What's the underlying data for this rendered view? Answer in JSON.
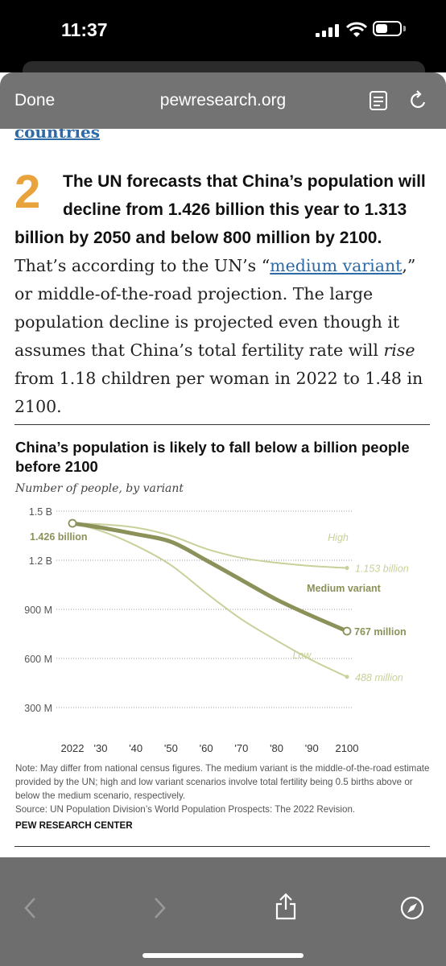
{
  "status_bar": {
    "time": "11:37"
  },
  "browser": {
    "done_label": "Done",
    "url": "pewresearch.org"
  },
  "article": {
    "cut_link": "countries",
    "number": "2",
    "bold_lead": "The UN forecasts that China’s population will decline from 1.426 billion this year to 1.313 billion by 2050 and below 800 million by 2100.",
    "text1": " That’s according to the UN’s “",
    "link": "medium variant",
    "text2": ",” or middle-of-the-road projection. The large population decline is projected even though it assumes that China’s total fertility rate will ",
    "italic": "rise",
    "text3": " from 1.18 children per woman in 2022 to 1.48 in 2100."
  },
  "chart_data": {
    "type": "line",
    "title": "China’s population is likely to fall below a billion people before 2100",
    "subtitle": "Number of people, by variant",
    "ylim": [
      0,
      1500
    ],
    "xlim": [
      2022,
      2100
    ],
    "y_ticks": [
      300,
      600,
      900,
      1200,
      1500
    ],
    "y_tick_labels": [
      "300 M",
      "600 M",
      "900 M",
      "1.2 B",
      "1.5 B"
    ],
    "x_ticks": [
      2022,
      2030,
      2040,
      2050,
      2060,
      2070,
      2080,
      2090,
      2100
    ],
    "x_tick_labels": [
      "2022",
      "'30",
      "'40",
      "'50",
      "'60",
      "'70",
      "'80",
      "'90",
      "2100"
    ],
    "grid": "horizontal dotted",
    "start_label": "1.426 billion",
    "series": [
      {
        "name": "High",
        "end_label": "1.153 billion",
        "color": "#c9d09a",
        "x": [
          2022,
          2030,
          2040,
          2050,
          2060,
          2070,
          2080,
          2090,
          2100
        ],
        "values": [
          1426,
          1420,
          1400,
          1350,
          1270,
          1215,
          1185,
          1165,
          1153
        ]
      },
      {
        "name": "Medium variant",
        "end_label": "767 million",
        "color": "#8c915a",
        "x": [
          2022,
          2030,
          2040,
          2050,
          2060,
          2070,
          2080,
          2090,
          2100
        ],
        "values": [
          1426,
          1400,
          1360,
          1313,
          1200,
          1080,
          960,
          860,
          767
        ]
      },
      {
        "name": "Low",
        "end_label": "488 million",
        "color": "#c9d09a",
        "x": [
          2022,
          2030,
          2040,
          2050,
          2060,
          2070,
          2080,
          2090,
          2100
        ],
        "values": [
          1426,
          1380,
          1290,
          1170,
          1000,
          840,
          710,
          590,
          488
        ]
      }
    ]
  },
  "notes": {
    "note": "Note: May differ from national census figures. The medium variant is the middle-of-the-road estimate provided by the UN; high and low variant scenarios involve total fertility being 0.5 births above or below the medium scenario, respectively.",
    "source": "Source: UN Population Division’s World Population Prospects: The 2022 Revision.",
    "org": "PEW RESEARCH CENTER"
  },
  "icons": {
    "back": "chevron-left-icon",
    "forward": "chevron-right-icon",
    "share": "share-icon",
    "compass": "compass-icon",
    "reader": "reader-icon",
    "reload": "reload-icon"
  },
  "colors": {
    "accent": "#e8a33c",
    "link": "#2e6aa6",
    "medium": "#8c915a",
    "light": "#c9d09a",
    "toolbar": "#6e6e6e"
  }
}
